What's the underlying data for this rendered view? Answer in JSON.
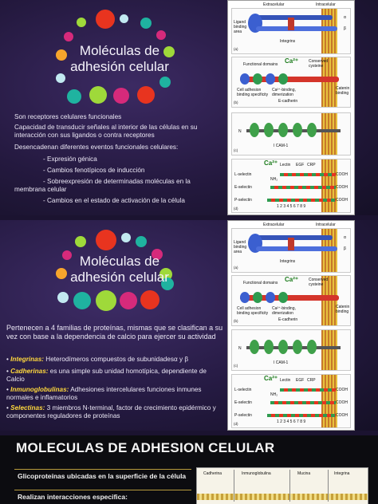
{
  "slide1": {
    "title_line1": "Moléculas de",
    "title_line2": "adhesión celular",
    "para1": "Son receptores celulares funcionales",
    "para2": "Capacidad de transducir señales al interior de las células en su interacción con sus ligandos o contra receptores",
    "para3": "Desencadenan diferentes eventos funcionales celulares:",
    "items": [
      "- Expresión génica",
      "- Cambios fenotípicos de inducción",
      "- Sobreexpresión de determinadas moléculas en la membrana celular",
      "- Cambios en el estado de activación de la célula"
    ]
  },
  "slide2": {
    "title_line1": "Moléculas de",
    "title_line2": "adhesión celular",
    "intro": "Pertenecen a 4 familias de proteínas, mismas que se clasifican  a su vez con base a la dependencia de calcio para ejercer su actividad",
    "families": [
      {
        "name": "Integrinas:",
        "desc": " Heterodímeros compuestos de subunidadesα y β"
      },
      {
        "name": "Cadherinas:",
        "desc": " es una simple sub unidad homotípica, dependiente de Calcio"
      },
      {
        "name": "Inmunoglobulinas:",
        "desc": " Adhesiones intercelulares funciones inmunes normales e inflamatorios"
      },
      {
        "name": "Selectinas:",
        "desc": " 3 miembros N-terminal, factor de crecimiento epidérmico y componentes reguladores de proteínas"
      }
    ]
  },
  "diagram": {
    "extracelular": "Extracelular",
    "intracelular": "Intracelular",
    "ligand": "Ligand binding area",
    "alpha": "α",
    "beta": "β",
    "integrins": "Integrins",
    "functional_domains": "Functional domains",
    "ca": "Ca²⁺",
    "conserved": "Conserved cysteine",
    "cell_adhesion": "Cell adhesion binding specificity",
    "ca_binding": "Ca²⁺-binding, dimerization",
    "catenin": "Catenin binding",
    "ecadherin": "E-cadherin",
    "icam": "I CAM-1",
    "n": "N",
    "cooh": "COOH",
    "nh2": "NH₂",
    "lectin": "Lectin",
    "egf": "EGF",
    "crp": "CRP",
    "lselectin": "L-selectin",
    "eselectin": "E-selectin",
    "pselectin": "P-selectin",
    "numbers": "1 2 3 4 5 6 7 8 9",
    "letters": [
      "(a)",
      "(b)",
      "(c)",
      "(d)"
    ]
  },
  "slide3": {
    "title": "MOLECULAS DE ADHESION CELULAR",
    "line1": "Glicoproteínas ubicadas en la superficie de la célula",
    "line2": "Realizan interacciones especifica:",
    "columns": [
      "Cadherina",
      "Inmunoglobulina",
      "Mucina",
      "Integrina"
    ]
  },
  "colors": {
    "bubbles": [
      "#e8341f",
      "#1fb3a0",
      "#9fd93a",
      "#d62a7b",
      "#f7a52c",
      "#c2e9f1"
    ],
    "accent_yellow": "#ffd83d"
  }
}
